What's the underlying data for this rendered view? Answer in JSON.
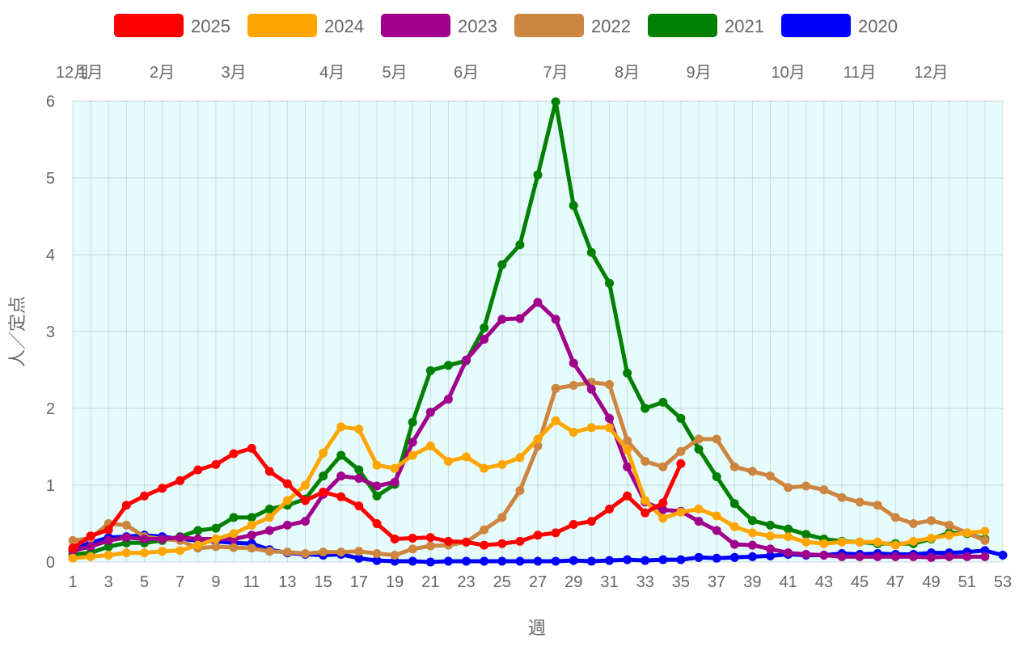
{
  "chart_data": {
    "type": "line",
    "xlabel": "週",
    "ylabel": "人／定点",
    "xlim": [
      1,
      53
    ],
    "ylim": [
      0,
      6
    ],
    "yticks": [
      0,
      1,
      2,
      3,
      4,
      5,
      6
    ],
    "xticks": [
      1,
      3,
      5,
      7,
      9,
      11,
      13,
      15,
      17,
      19,
      21,
      23,
      25,
      27,
      29,
      31,
      33,
      35,
      37,
      39,
      41,
      43,
      45,
      47,
      49,
      51,
      53
    ],
    "month_labels": [
      {
        "week": 1,
        "label": "12月"
      },
      {
        "week": 2,
        "label": "1月"
      },
      {
        "week": 6,
        "label": "2月"
      },
      {
        "week": 10,
        "label": "3月"
      },
      {
        "week": 15.5,
        "label": "4月"
      },
      {
        "week": 19,
        "label": "5月"
      },
      {
        "week": 23,
        "label": "6月"
      },
      {
        "week": 28,
        "label": "7月"
      },
      {
        "week": 32,
        "label": "8月"
      },
      {
        "week": 36,
        "label": "9月"
      },
      {
        "week": 41,
        "label": "10月"
      },
      {
        "week": 45,
        "label": "11月"
      },
      {
        "week": 49,
        "label": "12月"
      }
    ],
    "grid": true,
    "plot_background": "#e6fcfc",
    "legend_position": "top",
    "series": [
      {
        "name": "2020",
        "color": "#0000ff",
        "x_start": 1,
        "values": [
          0.17,
          0.25,
          0.32,
          0.33,
          0.35,
          0.33,
          0.3,
          0.28,
          0.27,
          0.25,
          0.24,
          0.16,
          0.12,
          0.1,
          0.09,
          0.1,
          0.05,
          0.02,
          0.01,
          0.01,
          0,
          0.01,
          0.01,
          0.01,
          0.01,
          0.01,
          0.01,
          0.01,
          0.02,
          0.01,
          0.02,
          0.03,
          0.02,
          0.03,
          0.03,
          0.06,
          0.05,
          0.06,
          0.07,
          0.08,
          0.1,
          0.09,
          0.09,
          0.11,
          0.1,
          0.11,
          0.1,
          0.1,
          0.12,
          0.12,
          0.13,
          0.15,
          0.09
        ]
      },
      {
        "name": "2021",
        "color": "#008000",
        "x_start": 1,
        "values": [
          0.1,
          0.12,
          0.2,
          0.25,
          0.25,
          0.28,
          0.33,
          0.41,
          0.44,
          0.58,
          0.58,
          0.69,
          0.74,
          0.82,
          1.12,
          1.39,
          1.2,
          0.86,
          1.01,
          1.82,
          2.49,
          2.56,
          2.62,
          3.05,
          3.87,
          4.13,
          5.04,
          5.99,
          4.64,
          4.03,
          3.63,
          2.46,
          2,
          2.08,
          1.87,
          1.47,
          1.11,
          0.76,
          0.54,
          0.48,
          0.43,
          0.36,
          0.3,
          0.27,
          0.26,
          0.24,
          0.24,
          0.24,
          0.3,
          0.38,
          0.37,
          0.3
        ]
      },
      {
        "name": "2022",
        "color": "#cd853f",
        "x_start": 1,
        "values": [
          0.28,
          0.31,
          0.5,
          0.48,
          0.33,
          0.3,
          0.28,
          0.18,
          0.2,
          0.19,
          0.18,
          0.14,
          0.13,
          0.11,
          0.13,
          0.13,
          0.14,
          0.11,
          0.09,
          0.17,
          0.21,
          0.22,
          0.26,
          0.42,
          0.58,
          0.93,
          1.51,
          2.26,
          2.3,
          2.34,
          2.31,
          1.58,
          1.31,
          1.24,
          1.44,
          1.6,
          1.6,
          1.24,
          1.18,
          1.12,
          0.97,
          0.99,
          0.94,
          0.84,
          0.78,
          0.74,
          0.58,
          0.5,
          0.54,
          0.48,
          0.38,
          0.28
        ]
      },
      {
        "name": "2023",
        "color": "#a0008b",
        "x_start": 1,
        "values": [
          0.15,
          0.2,
          0.28,
          0.32,
          0.3,
          0.3,
          0.32,
          0.3,
          0.3,
          0.3,
          0.35,
          0.41,
          0.48,
          0.53,
          0.88,
          1.12,
          1.09,
          0.99,
          1.04,
          1.56,
          1.95,
          2.12,
          2.63,
          2.9,
          3.16,
          3.17,
          3.38,
          3.16,
          2.59,
          2.25,
          1.87,
          1.24,
          0.78,
          0.68,
          0.66,
          0.53,
          0.41,
          0.23,
          0.22,
          0.17,
          0.12,
          0.1,
          0.09,
          0.07,
          0.07,
          0.07,
          0.07,
          0.07,
          0.06,
          0.07,
          0.07,
          0.07
        ]
      },
      {
        "name": "2024",
        "color": "#ffa500",
        "x_start": 1,
        "values": [
          0.05,
          0.07,
          0.09,
          0.12,
          0.12,
          0.14,
          0.15,
          0.22,
          0.3,
          0.37,
          0.48,
          0.58,
          0.8,
          1,
          1.42,
          1.76,
          1.73,
          1.26,
          1.22,
          1.39,
          1.51,
          1.31,
          1.37,
          1.22,
          1.27,
          1.36,
          1.6,
          1.84,
          1.69,
          1.75,
          1.75,
          1.46,
          0.8,
          0.57,
          0.65,
          0.69,
          0.6,
          0.46,
          0.38,
          0.34,
          0.33,
          0.26,
          0.24,
          0.26,
          0.26,
          0.26,
          0.22,
          0.27,
          0.31,
          0.35,
          0.38,
          0.4
        ]
      },
      {
        "name": "2025",
        "color": "#ff0000",
        "x_start": 1,
        "values": [
          0.18,
          0.34,
          0.42,
          0.74,
          0.86,
          0.96,
          1.06,
          1.2,
          1.27,
          1.41,
          1.48,
          1.18,
          1.02,
          0.8,
          0.91,
          0.85,
          0.73,
          0.5,
          0.3,
          0.31,
          0.32,
          0.27,
          0.26,
          0.22,
          0.24,
          0.27,
          0.35,
          0.38,
          0.49,
          0.53,
          0.69,
          0.86,
          0.64,
          0.77,
          1.28
        ]
      }
    ]
  },
  "legend_order": [
    "2025",
    "2024",
    "2023",
    "2022",
    "2021",
    "2020"
  ]
}
